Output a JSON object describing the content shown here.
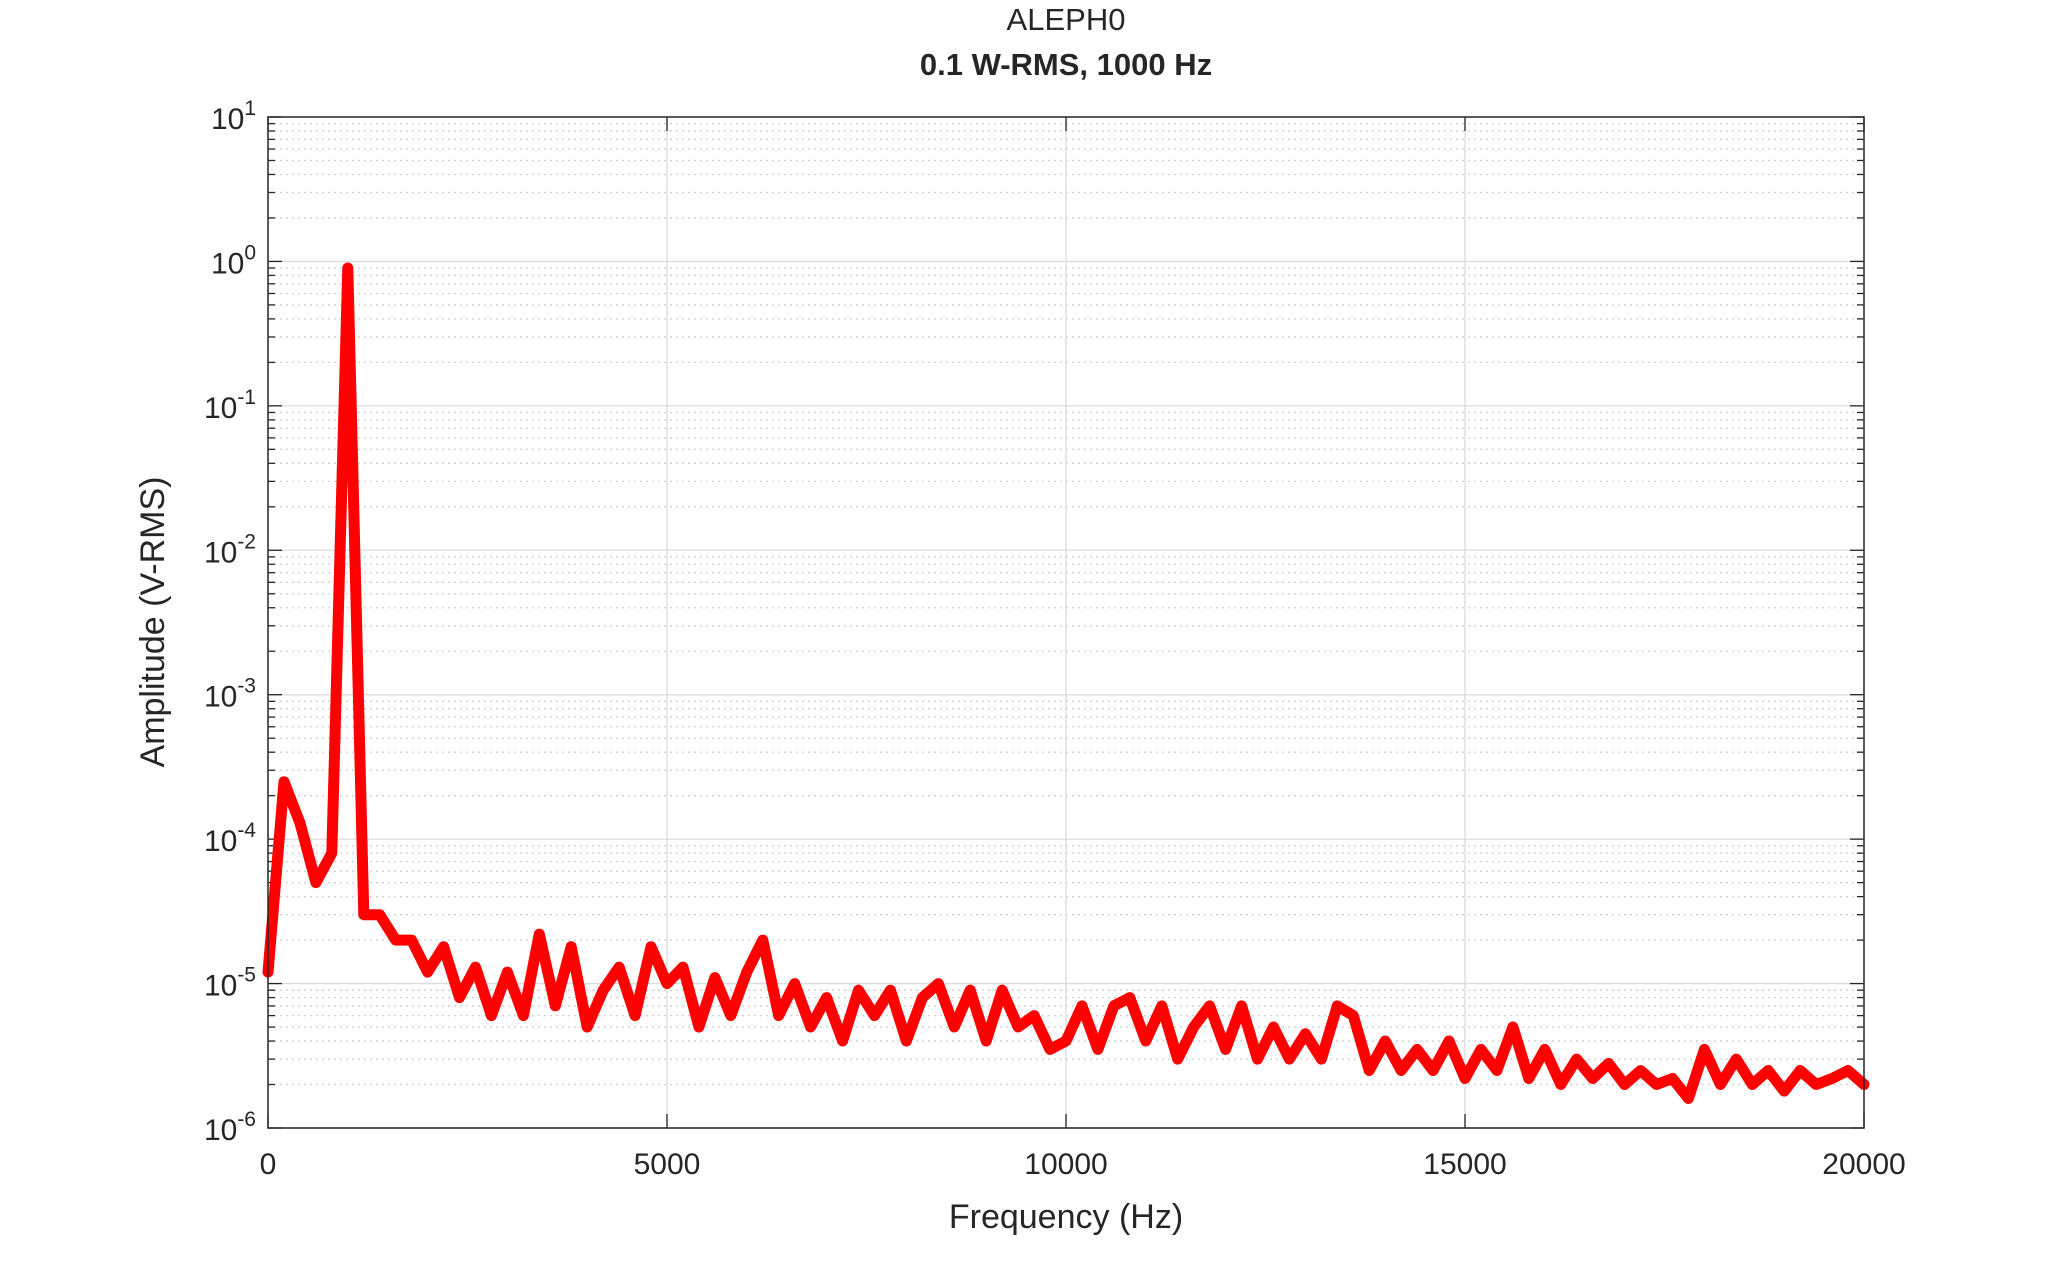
{
  "chart_data": {
    "type": "line",
    "title": "ALEPH0",
    "subtitle": "0.1 W-RMS, 1000 Hz",
    "x_label": "Frequency (Hz)",
    "y_label": "Amplitude (V-RMS)",
    "y_scale": "log",
    "grid": true,
    "xlim": [
      0,
      20000
    ],
    "xticks": [
      0,
      5000,
      10000,
      15000,
      20000
    ],
    "ylim": [
      1e-06,
      10
    ],
    "yticks": [
      {
        "value": 1e-06,
        "label": "10",
        "exponent": "-6"
      },
      {
        "value": 1e-05,
        "label": "10",
        "exponent": "-5"
      },
      {
        "value": 0.0001,
        "label": "10",
        "exponent": "-4"
      },
      {
        "value": 0.001,
        "label": "10",
        "exponent": "-3"
      },
      {
        "value": 0.01,
        "label": "10",
        "exponent": "-2"
      },
      {
        "value": 0.1,
        "label": "10",
        "exponent": "-1"
      },
      {
        "value": 1,
        "label": "10",
        "exponent": "0"
      },
      {
        "value": 10,
        "label": "10",
        "exponent": "1"
      }
    ],
    "x": [
      0,
      200,
      400,
      600,
      800,
      1000,
      1200,
      1400,
      1600,
      1800,
      2000,
      2200,
      2400,
      2600,
      2800,
      3000,
      3200,
      3400,
      3600,
      3800,
      4000,
      4200,
      4400,
      4600,
      4800,
      5000,
      5200,
      5400,
      5600,
      5800,
      6000,
      6200,
      6400,
      6600,
      6800,
      7000,
      7200,
      7400,
      7600,
      7800,
      8000,
      8200,
      8400,
      8600,
      8800,
      9000,
      9200,
      9400,
      9600,
      9800,
      10000,
      10200,
      10400,
      10600,
      10800,
      11000,
      11200,
      11400,
      11600,
      11800,
      12000,
      12200,
      12400,
      12600,
      12800,
      13000,
      13200,
      13400,
      13600,
      13800,
      14000,
      14200,
      14400,
      14600,
      14800,
      15000,
      15200,
      15400,
      15600,
      15800,
      16000,
      16200,
      16400,
      16600,
      16800,
      17000,
      17200,
      17400,
      17600,
      17800,
      18000,
      18200,
      18400,
      18600,
      18800,
      19000,
      19200,
      19400,
      19600,
      19800,
      20000
    ],
    "series": [
      {
        "name": "ALEPH0",
        "color": "#ff0000",
        "values": [
          1.2e-05,
          0.00025,
          0.00013,
          5e-05,
          8e-05,
          0.9,
          3e-05,
          3e-05,
          2e-05,
          2e-05,
          1.2e-05,
          1.8e-05,
          8e-06,
          1.3e-05,
          6e-06,
          1.2e-05,
          6e-06,
          2.2e-05,
          7e-06,
          1.8e-05,
          5e-06,
          9e-06,
          1.3e-05,
          6e-06,
          1.8e-05,
          1e-05,
          1.3e-05,
          5e-06,
          1.1e-05,
          6e-06,
          1.2e-05,
          2e-05,
          6e-06,
          1e-05,
          5e-06,
          8e-06,
          4e-06,
          9e-06,
          6e-06,
          9e-06,
          4e-06,
          8e-06,
          1e-05,
          5e-06,
          9e-06,
          4e-06,
          9e-06,
          5e-06,
          6e-06,
          3.5e-06,
          4e-06,
          7e-06,
          3.5e-06,
          7e-06,
          8e-06,
          4e-06,
          7e-06,
          3e-06,
          5e-06,
          7e-06,
          3.5e-06,
          7e-06,
          3e-06,
          5e-06,
          3e-06,
          4.5e-06,
          3e-06,
          7e-06,
          6e-06,
          2.5e-06,
          4e-06,
          2.5e-06,
          3.5e-06,
          2.5e-06,
          4e-06,
          2.2e-06,
          3.5e-06,
          2.5e-06,
          5e-06,
          2.2e-06,
          3.5e-06,
          2e-06,
          3e-06,
          2.2e-06,
          2.8e-06,
          2e-06,
          2.5e-06,
          2e-06,
          2.2e-06,
          1.6e-06,
          3.5e-06,
          2e-06,
          3e-06,
          2e-06,
          2.5e-06,
          1.8e-06,
          2.5e-06,
          2e-06,
          2.2e-06,
          2.5e-06,
          2e-06
        ]
      }
    ]
  }
}
